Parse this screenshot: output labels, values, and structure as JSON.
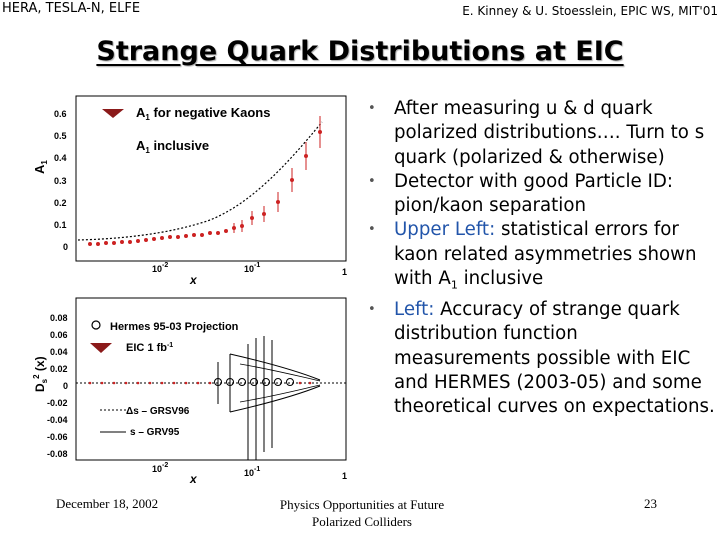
{
  "header": {
    "left": "HERA, TESLA-N, ELFE",
    "right": "E. Kinney & U. Stoesslein, EPIC WS, MIT'01"
  },
  "title": "Strange Quark Distributions at EIC",
  "bullets": [
    {
      "parts": [
        {
          "text": "After measuring u & d quark polarized distributions…. Turn to s quark (polarized & otherwise)",
          "hl": false
        }
      ]
    },
    {
      "parts": [
        {
          "text": "Detector with good Particle ID: pion/kaon separation",
          "hl": false
        }
      ]
    },
    {
      "parts": [
        {
          "text": "Upper Left:",
          "hl": true
        },
        {
          "text": " statistical errors for kaon related asymmetries shown with A",
          "hl": false
        },
        {
          "text": "1",
          "sub": true
        },
        {
          "text": " inclusive",
          "hl": false
        }
      ]
    },
    {
      "parts": [
        {
          "text": "Left:",
          "hl": true
        },
        {
          "text": " Accuracy of strange quark distribution function measurements possible with EIC and HERMES (2003-05) and some theoretical curves on expectations.",
          "hl": false
        }
      ]
    }
  ],
  "footer": {
    "date": "December 18, 2002",
    "center_line1": "Physics Opportunities at Future",
    "center_line2": "Polarized Colliders",
    "page": "23"
  },
  "colors": {
    "highlight": "#2255aa",
    "points": "#cc2222",
    "marker": "#8b1a1a"
  },
  "figure": {
    "top": {
      "ylabel": "A1",
      "yticks": [
        "0.6",
        "0.5",
        "0.4",
        "0.3",
        "0.2",
        "0.1",
        "0"
      ],
      "xticks": [
        "10-2",
        "10-1",
        "1"
      ],
      "xlabel": "x",
      "legend1": "A1 for negative Kaons",
      "legend2": "A1 inclusive"
    },
    "bottom": {
      "ylabel": "Ds2 (x)",
      "yticks": [
        "0.08",
        "0.06",
        "0.04",
        "0.02",
        "0",
        "-0.02",
        "-0.04",
        "-0.06",
        "-0.08"
      ],
      "xticks": [
        "10-2",
        "10-1",
        "1"
      ],
      "xlabel": "x",
      "legend1": "Hermes 95-03 Projection",
      "legend2": "EIC 1 fb-1",
      "legend3": "Δs – GRSV96",
      "legend4": "s – GRV95"
    }
  }
}
